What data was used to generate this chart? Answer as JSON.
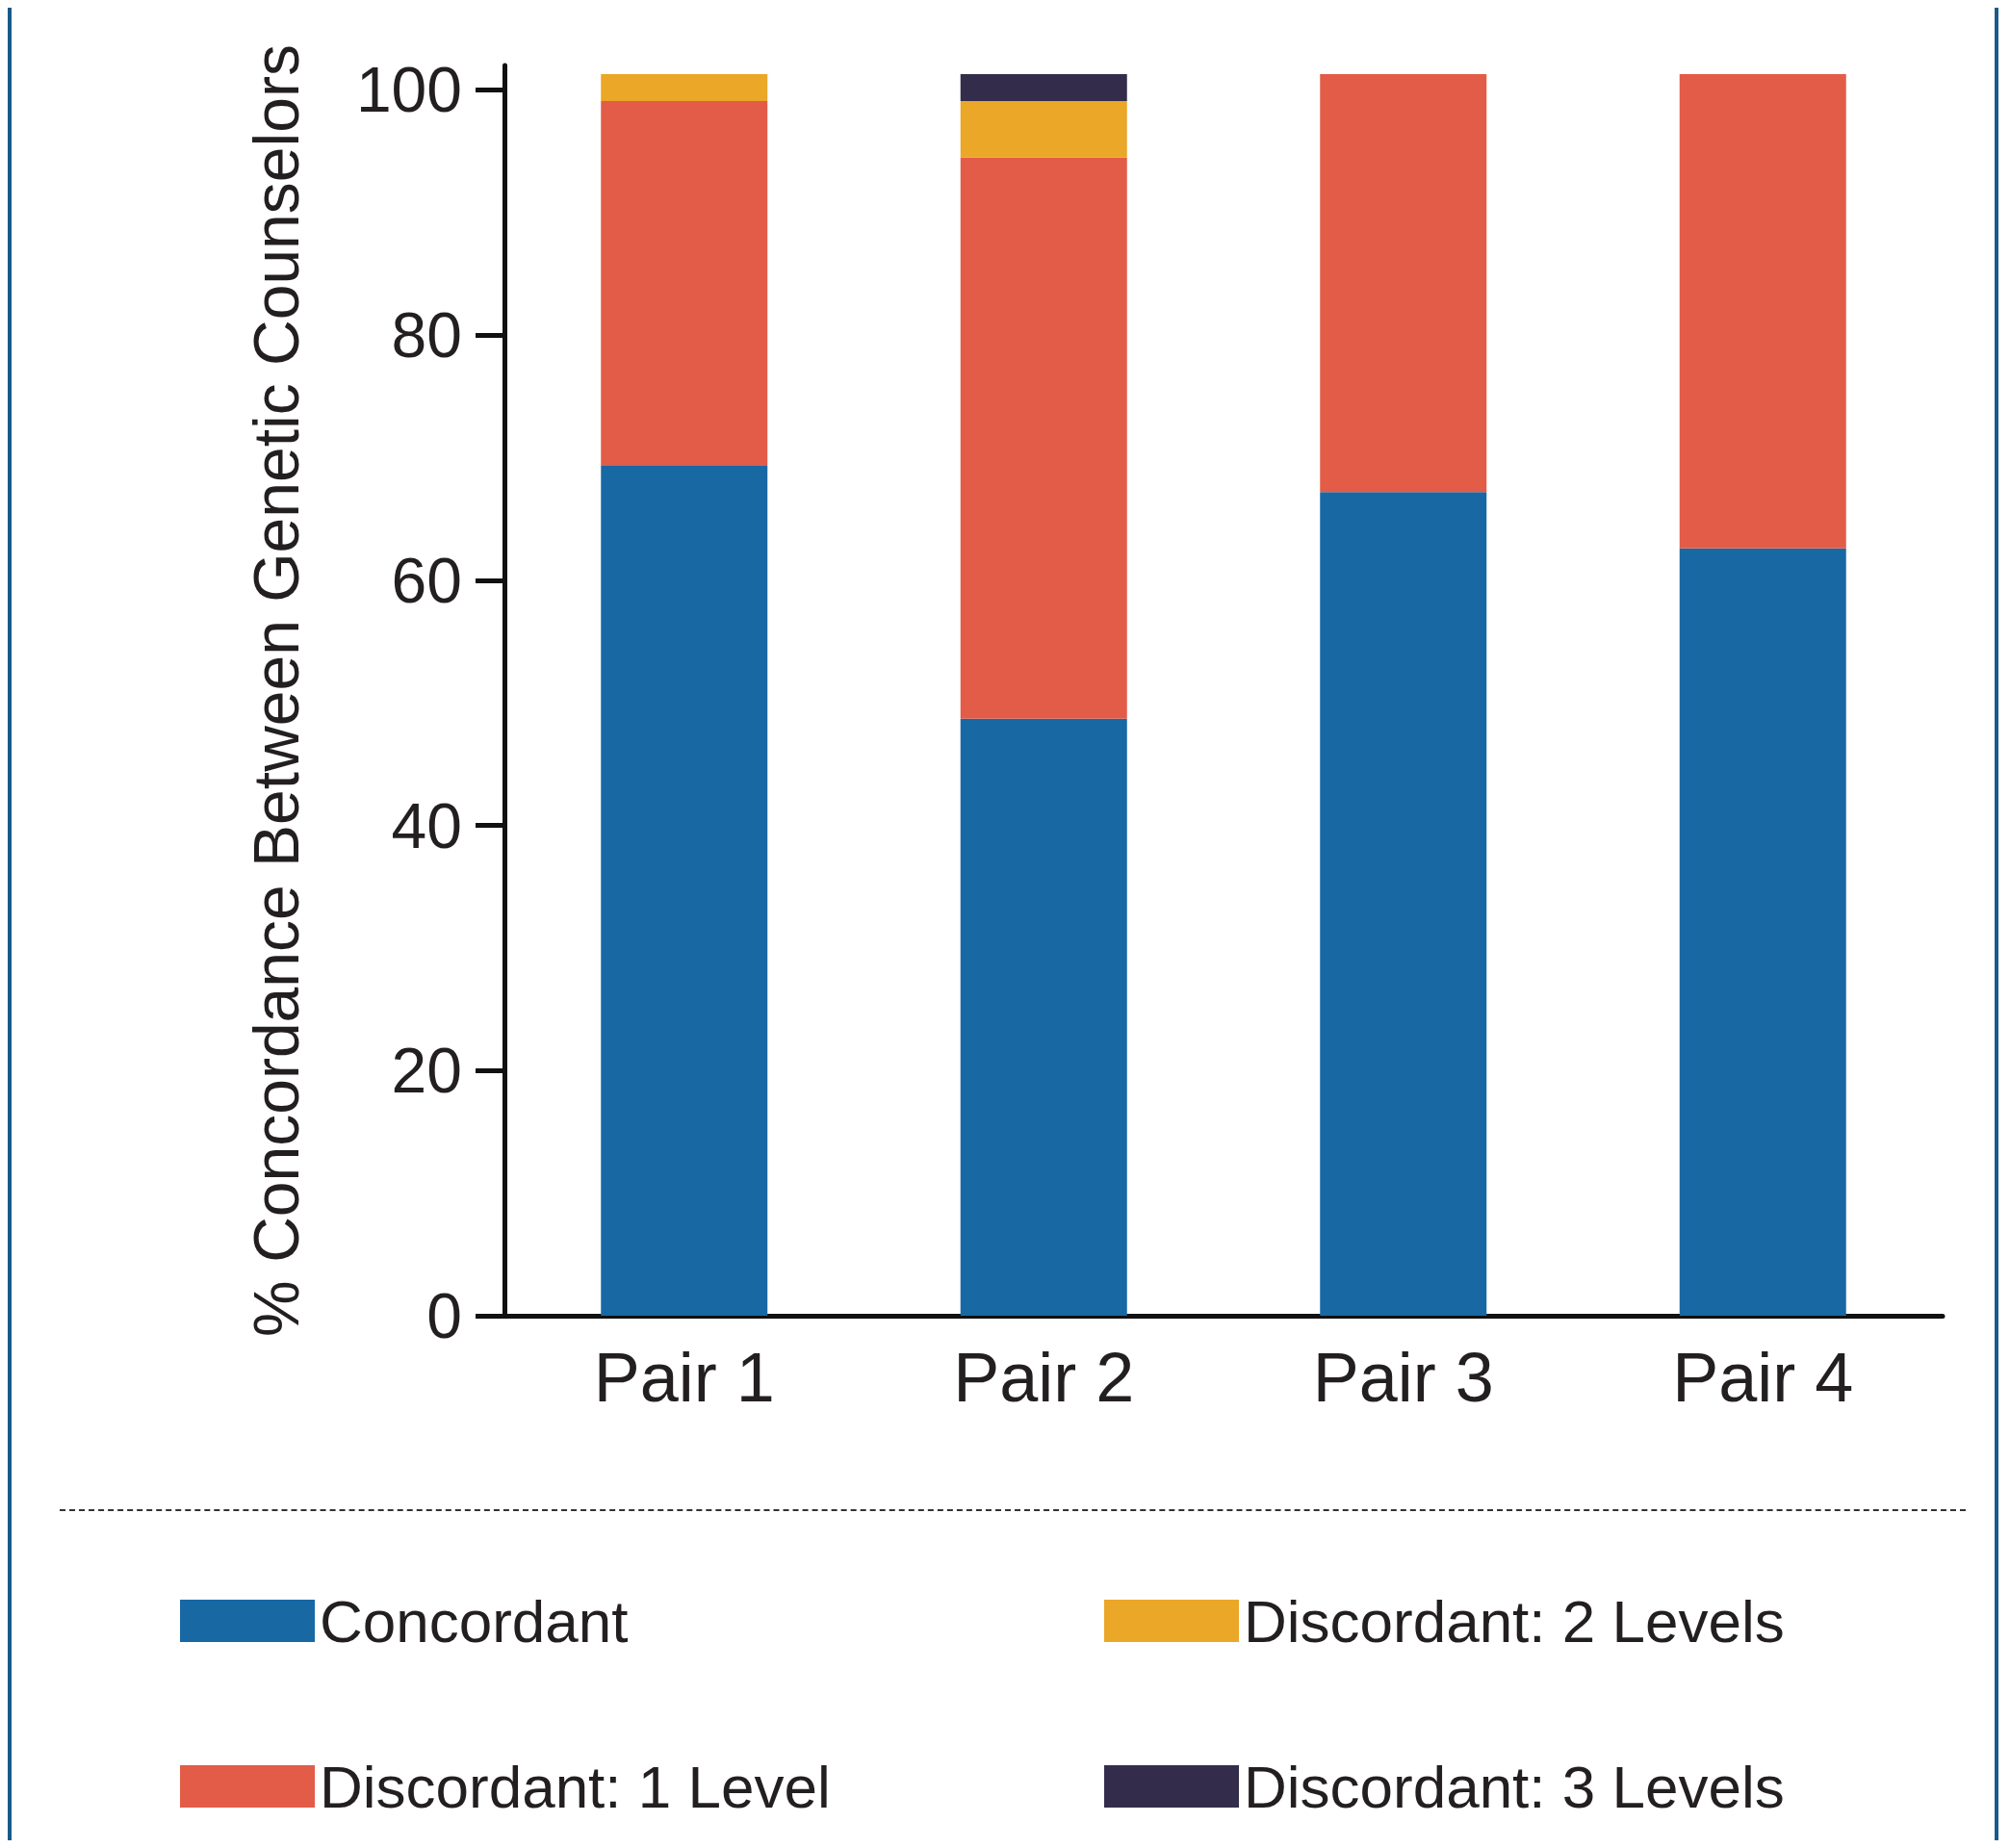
{
  "chart_data": {
    "type": "bar",
    "stacked": true,
    "ylabel": "% Concordance Between Genetic Counselors",
    "categories": [
      "Pair 1",
      "Pair 2",
      "Pair 3",
      "Pair 4"
    ],
    "series": [
      {
        "name": "Concordant",
        "color": "#1868a4",
        "values": [
          69.4,
          48.7,
          67.2,
          62.6
        ]
      },
      {
        "name": "Discordant: 1 Level",
        "color": "#e25c48",
        "values": [
          29.7,
          45.8,
          34.1,
          38.7
        ]
      },
      {
        "name": "Discordant: 2 Levels",
        "color": "#eba728",
        "values": [
          2.2,
          4.6,
          0,
          0
        ]
      },
      {
        "name": "Discordant: 3 Levels",
        "color": "#332d4b",
        "values": [
          0,
          2.2,
          0,
          0
        ]
      }
    ],
    "ylim": [
      0,
      102
    ],
    "yticks": [
      0,
      20,
      40,
      60,
      80,
      100
    ],
    "grid": false,
    "legend": "bottom"
  }
}
